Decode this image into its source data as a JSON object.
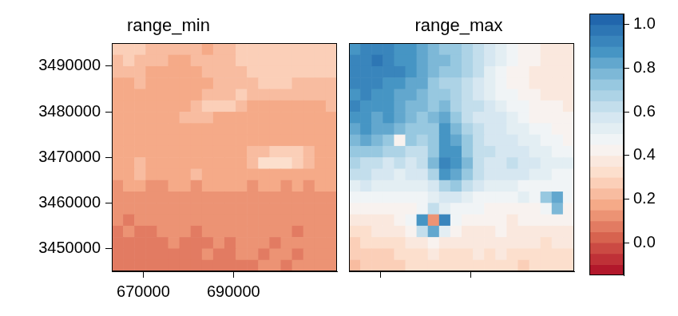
{
  "chart_data": {
    "type": "heatmap",
    "x": [
      664250,
      666750,
      669250,
      671750,
      674250,
      676750,
      679250,
      681750,
      684250,
      686750,
      689250,
      691750,
      694250,
      696750,
      699250,
      701750,
      704250,
      706750,
      709250,
      711750
    ],
    "y": [
      3493750,
      3491250,
      3488750,
      3486250,
      3483750,
      3481250,
      3478750,
      3476250,
      3473750,
      3471250,
      3468750,
      3466250,
      3463750,
      3461250,
      3458750,
      3456250,
      3453750,
      3451250,
      3448750,
      3446250
    ],
    "xlim": [
      663000,
      713000
    ],
    "ylim": [
      3445000,
      3495000
    ],
    "xticks": [
      670000,
      690000
    ],
    "yticks": [
      3450000,
      3460000,
      3470000,
      3480000,
      3490000
    ],
    "grid": false,
    "panels": [
      {
        "title": "range_min",
        "values": [
          [
            0.25,
            0.25,
            0.25,
            0.22,
            0.2,
            0.2,
            0.2,
            0.2,
            0.18,
            0.2,
            0.22,
            0.25,
            0.25,
            0.25,
            0.25,
            0.25,
            0.25,
            0.25,
            0.25,
            0.25
          ],
          [
            0.22,
            0.25,
            0.22,
            0.2,
            0.2,
            0.18,
            0.18,
            0.2,
            0.2,
            0.2,
            0.22,
            0.25,
            0.25,
            0.25,
            0.25,
            0.25,
            0.25,
            0.28,
            0.25,
            0.25
          ],
          [
            0.2,
            0.2,
            0.2,
            0.18,
            0.18,
            0.18,
            0.18,
            0.18,
            0.2,
            0.2,
            0.22,
            0.22,
            0.25,
            0.25,
            0.25,
            0.25,
            0.25,
            0.25,
            0.25,
            0.25
          ],
          [
            0.18,
            0.18,
            0.2,
            0.18,
            0.18,
            0.18,
            0.18,
            0.18,
            0.18,
            0.2,
            0.2,
            0.2,
            0.22,
            0.25,
            0.25,
            0.25,
            0.22,
            0.22,
            0.22,
            0.22
          ],
          [
            0.18,
            0.18,
            0.18,
            0.18,
            0.18,
            0.18,
            0.18,
            0.18,
            0.2,
            0.2,
            0.22,
            0.25,
            0.22,
            0.2,
            0.2,
            0.2,
            0.2,
            0.2,
            0.2,
            0.2
          ],
          [
            0.18,
            0.18,
            0.18,
            0.16,
            0.18,
            0.18,
            0.18,
            0.22,
            0.25,
            0.25,
            0.25,
            0.2,
            0.18,
            0.18,
            0.18,
            0.18,
            0.18,
            0.18,
            0.18,
            0.2
          ],
          [
            0.18,
            0.16,
            0.18,
            0.18,
            0.18,
            0.18,
            0.2,
            0.22,
            0.2,
            0.18,
            0.18,
            0.18,
            0.18,
            0.18,
            0.18,
            0.18,
            0.18,
            0.18,
            0.18,
            0.18
          ],
          [
            0.18,
            0.18,
            0.18,
            0.18,
            0.18,
            0.18,
            0.18,
            0.18,
            0.18,
            0.18,
            0.18,
            0.18,
            0.18,
            0.18,
            0.18,
            0.18,
            0.18,
            0.18,
            0.16,
            0.18
          ],
          [
            0.16,
            0.18,
            0.16,
            0.18,
            0.18,
            0.18,
            0.18,
            0.18,
            0.18,
            0.18,
            0.18,
            0.18,
            0.18,
            0.18,
            0.18,
            0.18,
            0.18,
            0.18,
            0.18,
            0.18
          ],
          [
            0.18,
            0.18,
            0.18,
            0.18,
            0.16,
            0.18,
            0.18,
            0.18,
            0.18,
            0.18,
            0.18,
            0.18,
            0.2,
            0.22,
            0.25,
            0.28,
            0.25,
            0.22,
            0.18,
            0.18
          ],
          [
            0.16,
            0.18,
            0.22,
            0.18,
            0.16,
            0.18,
            0.18,
            0.18,
            0.18,
            0.18,
            0.18,
            0.18,
            0.2,
            0.3,
            0.3,
            0.3,
            0.28,
            0.22,
            0.18,
            0.16
          ],
          [
            0.16,
            0.16,
            0.2,
            0.18,
            0.16,
            0.16,
            0.18,
            0.2,
            0.18,
            0.16,
            0.16,
            0.18,
            0.18,
            0.18,
            0.18,
            0.18,
            0.16,
            0.16,
            0.16,
            0.16
          ],
          [
            0.14,
            0.16,
            0.16,
            0.14,
            0.14,
            0.16,
            0.16,
            0.14,
            0.16,
            0.16,
            0.16,
            0.16,
            0.14,
            0.16,
            0.16,
            0.14,
            0.16,
            0.14,
            0.16,
            0.16
          ],
          [
            0.14,
            0.12,
            0.14,
            0.14,
            0.12,
            0.14,
            0.14,
            0.14,
            0.12,
            0.14,
            0.14,
            0.14,
            0.14,
            0.14,
            0.12,
            0.14,
            0.14,
            0.14,
            0.14,
            0.14
          ],
          [
            0.1,
            0.12,
            0.1,
            0.12,
            0.12,
            0.1,
            0.12,
            0.12,
            0.12,
            0.1,
            0.12,
            0.12,
            0.12,
            0.12,
            0.12,
            0.1,
            0.12,
            0.12,
            0.12,
            0.12
          ],
          [
            0.1,
            0.08,
            0.1,
            0.1,
            0.12,
            0.1,
            0.1,
            0.1,
            0.12,
            0.12,
            0.1,
            0.1,
            0.12,
            0.14,
            0.1,
            0.1,
            0.1,
            0.12,
            0.12,
            0.1
          ],
          [
            0.08,
            0.1,
            0.08,
            0.08,
            0.1,
            0.1,
            0.1,
            0.08,
            0.1,
            0.1,
            0.1,
            0.1,
            0.1,
            0.12,
            0.1,
            0.1,
            0.08,
            0.1,
            0.12,
            0.1
          ],
          [
            0.08,
            0.08,
            0.06,
            0.08,
            0.08,
            0.1,
            0.08,
            0.08,
            0.08,
            0.1,
            0.08,
            0.1,
            0.1,
            0.1,
            0.08,
            0.1,
            0.1,
            0.1,
            0.1,
            0.1
          ],
          [
            0.06,
            0.06,
            0.08,
            0.06,
            0.08,
            0.08,
            0.08,
            0.08,
            0.1,
            0.08,
            0.08,
            0.1,
            0.1,
            0.08,
            0.1,
            0.1,
            0.08,
            0.1,
            0.1,
            0.1
          ],
          [
            0.06,
            0.06,
            0.06,
            0.08,
            0.06,
            0.08,
            0.08,
            0.08,
            0.08,
            0.08,
            0.08,
            0.08,
            0.08,
            0.1,
            0.1,
            0.08,
            0.1,
            0.1,
            0.1,
            0.1
          ]
        ]
      },
      {
        "title": "range_max",
        "tick_labels": false,
        "values": [
          [
            0.85,
            0.9,
            0.9,
            0.9,
            0.85,
            0.85,
            0.8,
            0.75,
            0.7,
            0.7,
            0.65,
            0.6,
            0.55,
            0.5,
            0.45,
            0.4,
            0.4,
            0.38,
            0.35,
            0.35
          ],
          [
            0.9,
            0.9,
            0.95,
            0.9,
            0.85,
            0.85,
            0.8,
            0.75,
            0.75,
            0.7,
            0.65,
            0.6,
            0.55,
            0.5,
            0.45,
            0.42,
            0.4,
            0.38,
            0.35,
            0.35
          ],
          [
            0.9,
            0.9,
            0.9,
            0.9,
            0.9,
            0.85,
            0.8,
            0.75,
            0.7,
            0.7,
            0.65,
            0.6,
            0.5,
            0.45,
            0.42,
            0.4,
            0.38,
            0.38,
            0.35,
            0.38
          ],
          [
            0.9,
            0.9,
            0.9,
            0.85,
            0.85,
            0.8,
            0.8,
            0.7,
            0.65,
            0.65,
            0.6,
            0.55,
            0.5,
            0.45,
            0.42,
            0.4,
            0.38,
            0.35,
            0.35,
            0.35
          ],
          [
            0.85,
            0.9,
            0.85,
            0.85,
            0.8,
            0.8,
            0.75,
            0.7,
            0.7,
            0.65,
            0.6,
            0.55,
            0.5,
            0.45,
            0.45,
            0.42,
            0.4,
            0.38,
            0.35,
            0.35
          ],
          [
            0.9,
            0.85,
            0.85,
            0.85,
            0.8,
            0.75,
            0.75,
            0.7,
            0.75,
            0.65,
            0.6,
            0.6,
            0.55,
            0.5,
            0.45,
            0.45,
            0.42,
            0.4,
            0.4,
            0.38
          ],
          [
            0.85,
            0.85,
            0.8,
            0.85,
            0.8,
            0.75,
            0.7,
            0.75,
            0.8,
            0.7,
            0.6,
            0.55,
            0.55,
            0.55,
            0.5,
            0.45,
            0.42,
            0.42,
            0.4,
            0.4
          ],
          [
            0.8,
            0.85,
            0.8,
            0.8,
            0.75,
            0.7,
            0.7,
            0.7,
            0.85,
            0.75,
            0.65,
            0.6,
            0.55,
            0.55,
            0.5,
            0.5,
            0.45,
            0.45,
            0.42,
            0.4
          ],
          [
            0.75,
            0.8,
            0.75,
            0.7,
            0.4,
            0.7,
            0.65,
            0.7,
            0.85,
            0.8,
            0.7,
            0.6,
            0.55,
            0.55,
            0.55,
            0.5,
            0.5,
            0.45,
            0.45,
            0.42
          ],
          [
            0.7,
            0.7,
            0.7,
            0.65,
            0.65,
            0.6,
            0.6,
            0.7,
            0.85,
            0.85,
            0.7,
            0.6,
            0.6,
            0.55,
            0.55,
            0.55,
            0.5,
            0.5,
            0.45,
            0.45
          ],
          [
            0.65,
            0.6,
            0.6,
            0.55,
            0.6,
            0.55,
            0.6,
            0.75,
            0.9,
            0.85,
            0.75,
            0.6,
            0.55,
            0.55,
            0.6,
            0.55,
            0.55,
            0.5,
            0.5,
            0.5
          ],
          [
            0.6,
            0.6,
            0.55,
            0.55,
            0.5,
            0.55,
            0.55,
            0.65,
            0.85,
            0.8,
            0.7,
            0.6,
            0.55,
            0.55,
            0.55,
            0.55,
            0.5,
            0.5,
            0.45,
            0.45
          ],
          [
            0.5,
            0.55,
            0.5,
            0.5,
            0.5,
            0.5,
            0.5,
            0.55,
            0.65,
            0.7,
            0.6,
            0.55,
            0.5,
            0.5,
            0.5,
            0.45,
            0.45,
            0.45,
            0.45,
            0.45
          ],
          [
            0.45,
            0.45,
            0.45,
            0.45,
            0.45,
            0.45,
            0.45,
            0.5,
            0.55,
            0.55,
            0.5,
            0.45,
            0.45,
            0.45,
            0.45,
            0.5,
            0.45,
            0.7,
            0.8,
            0.45
          ],
          [
            0.4,
            0.4,
            0.4,
            0.4,
            0.4,
            0.4,
            0.45,
            0.6,
            0.5,
            0.45,
            0.45,
            0.45,
            0.4,
            0.4,
            0.4,
            0.4,
            0.4,
            0.45,
            0.75,
            0.4
          ],
          [
            0.35,
            0.35,
            0.38,
            0.35,
            0.4,
            0.45,
            0.85,
            0.1,
            0.9,
            0.45,
            0.4,
            0.4,
            0.4,
            0.4,
            0.38,
            0.4,
            0.4,
            0.4,
            0.4,
            0.4
          ],
          [
            0.3,
            0.32,
            0.35,
            0.35,
            0.35,
            0.4,
            0.6,
            0.8,
            0.5,
            0.4,
            0.38,
            0.35,
            0.35,
            0.4,
            0.38,
            0.35,
            0.35,
            0.38,
            0.38,
            0.35
          ],
          [
            0.28,
            0.3,
            0.3,
            0.3,
            0.3,
            0.35,
            0.38,
            0.4,
            0.35,
            0.35,
            0.35,
            0.35,
            0.38,
            0.35,
            0.35,
            0.35,
            0.35,
            0.32,
            0.35,
            0.35
          ],
          [
            0.25,
            0.25,
            0.28,
            0.28,
            0.3,
            0.32,
            0.32,
            0.35,
            0.32,
            0.3,
            0.32,
            0.35,
            0.32,
            0.35,
            0.32,
            0.3,
            0.32,
            0.32,
            0.3,
            0.3
          ],
          [
            0.22,
            0.25,
            0.25,
            0.28,
            0.28,
            0.3,
            0.3,
            0.3,
            0.3,
            0.3,
            0.3,
            0.3,
            0.3,
            0.3,
            0.3,
            0.28,
            0.3,
            0.3,
            0.3,
            0.3
          ]
        ]
      }
    ],
    "colorbar": {
      "levels": [
        -0.15,
        -0.1,
        -0.05,
        0,
        0.05,
        0.1,
        0.15,
        0.2,
        0.25,
        0.3,
        0.35,
        0.4,
        0.45,
        0.5,
        0.55,
        0.6,
        0.65,
        0.7,
        0.75,
        0.8,
        0.85,
        0.9,
        0.95,
        1,
        1.05
      ],
      "ylim": [
        -0.15,
        1.05
      ],
      "yticks": [
        {
          "value": 0,
          "label": "0.0"
        },
        0.2,
        0.4,
        0.6,
        0.8,
        {
          "value": 1,
          "label": "1.0"
        }
      ]
    }
  }
}
